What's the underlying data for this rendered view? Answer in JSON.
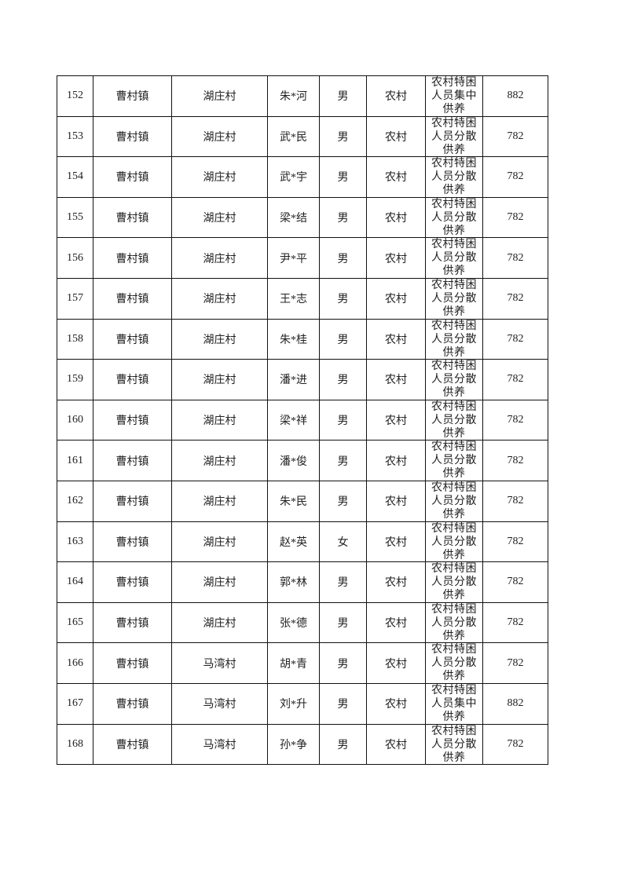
{
  "category_lines": {
    "concentrated": [
      "农村特困",
      "人员集中",
      "供养"
    ],
    "dispersed": [
      "农村特困",
      "人员分散",
      "供养"
    ]
  },
  "rows": [
    {
      "no": "152",
      "town": "曹村镇",
      "village": "湖庄村",
      "name": "朱*河",
      "gender": "男",
      "type": "农村",
      "category": [
        "农村特困",
        "人员集中",
        "供养"
      ],
      "amount": "882"
    },
    {
      "no": "153",
      "town": "曹村镇",
      "village": "湖庄村",
      "name": "武*民",
      "gender": "男",
      "type": "农村",
      "category": [
        "农村特困",
        "人员分散",
        "供养"
      ],
      "amount": "782"
    },
    {
      "no": "154",
      "town": "曹村镇",
      "village": "湖庄村",
      "name": "武*宇",
      "gender": "男",
      "type": "农村",
      "category": [
        "农村特困",
        "人员分散",
        "供养"
      ],
      "amount": "782"
    },
    {
      "no": "155",
      "town": "曹村镇",
      "village": "湖庄村",
      "name": "梁*结",
      "gender": "男",
      "type": "农村",
      "category": [
        "农村特困",
        "人员分散",
        "供养"
      ],
      "amount": "782"
    },
    {
      "no": "156",
      "town": "曹村镇",
      "village": "湖庄村",
      "name": "尹*平",
      "gender": "男",
      "type": "农村",
      "category": [
        "农村特困",
        "人员分散",
        "供养"
      ],
      "amount": "782"
    },
    {
      "no": "157",
      "town": "曹村镇",
      "village": "湖庄村",
      "name": "王*志",
      "gender": "男",
      "type": "农村",
      "category": [
        "农村特困",
        "人员分散",
        "供养"
      ],
      "amount": "782"
    },
    {
      "no": "158",
      "town": "曹村镇",
      "village": "湖庄村",
      "name": "朱*桂",
      "gender": "男",
      "type": "农村",
      "category": [
        "农村特困",
        "人员分散",
        "供养"
      ],
      "amount": "782"
    },
    {
      "no": "159",
      "town": "曹村镇",
      "village": "湖庄村",
      "name": "潘*进",
      "gender": "男",
      "type": "农村",
      "category": [
        "农村特困",
        "人员分散",
        "供养"
      ],
      "amount": "782"
    },
    {
      "no": "160",
      "town": "曹村镇",
      "village": "湖庄村",
      "name": "梁*祥",
      "gender": "男",
      "type": "农村",
      "category": [
        "农村特困",
        "人员分散",
        "供养"
      ],
      "amount": "782"
    },
    {
      "no": "161",
      "town": "曹村镇",
      "village": "湖庄村",
      "name": "潘*俊",
      "gender": "男",
      "type": "农村",
      "category": [
        "农村特困",
        "人员分散",
        "供养"
      ],
      "amount": "782"
    },
    {
      "no": "162",
      "town": "曹村镇",
      "village": "湖庄村",
      "name": "朱*民",
      "gender": "男",
      "type": "农村",
      "category": [
        "农村特困",
        "人员分散",
        "供养"
      ],
      "amount": "782"
    },
    {
      "no": "163",
      "town": "曹村镇",
      "village": "湖庄村",
      "name": "赵*英",
      "gender": "女",
      "type": "农村",
      "category": [
        "农村特困",
        "人员分散",
        "供养"
      ],
      "amount": "782"
    },
    {
      "no": "164",
      "town": "曹村镇",
      "village": "湖庄村",
      "name": "郭*林",
      "gender": "男",
      "type": "农村",
      "category": [
        "农村特困",
        "人员分散",
        "供养"
      ],
      "amount": "782"
    },
    {
      "no": "165",
      "town": "曹村镇",
      "village": "湖庄村",
      "name": "张*德",
      "gender": "男",
      "type": "农村",
      "category": [
        "农村特困",
        "人员分散",
        "供养"
      ],
      "amount": "782"
    },
    {
      "no": "166",
      "town": "曹村镇",
      "village": "马湾村",
      "name": "胡*青",
      "gender": "男",
      "type": "农村",
      "category": [
        "农村特困",
        "人员分散",
        "供养"
      ],
      "amount": "782"
    },
    {
      "no": "167",
      "town": "曹村镇",
      "village": "马湾村",
      "name": "刘*升",
      "gender": "男",
      "type": "农村",
      "category": [
        "农村特困",
        "人员集中",
        "供养"
      ],
      "amount": "882"
    },
    {
      "no": "168",
      "town": "曹村镇",
      "village": "马湾村",
      "name": "孙*争",
      "gender": "男",
      "type": "农村",
      "category": [
        "农村特困",
        "人员分散",
        "供养"
      ],
      "amount": "782"
    }
  ]
}
